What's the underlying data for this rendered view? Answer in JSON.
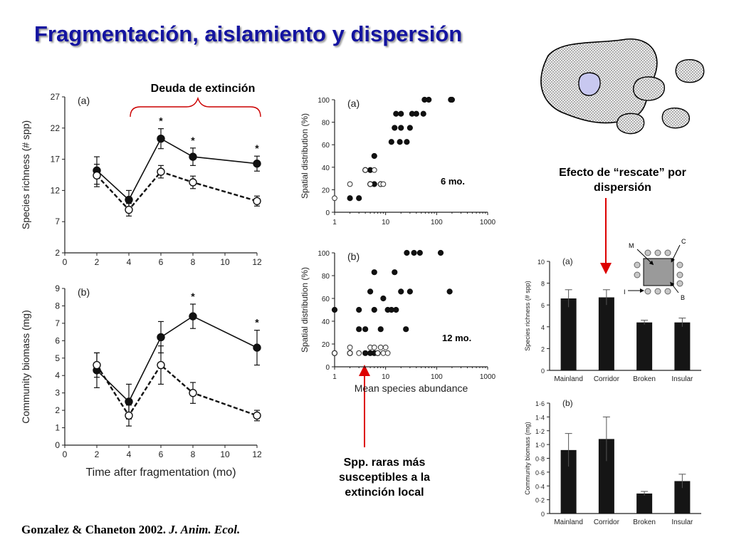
{
  "slide": {
    "title": "Fragmentación, aislamiento y dispersión",
    "annotations": {
      "debt": "Deuda de extinción",
      "rescue": [
        "Efecto de “rescate” por",
        "dispersión"
      ],
      "rare": [
        "Spp. raras más",
        "susceptibles a la",
        "extinción local"
      ],
      "label_6mo": "6 mo.",
      "label_12mo": "12 mo."
    },
    "citation": {
      "authors": "Gonzalez & Chaneton 2002. ",
      "journal": "J. Anim. Ecol."
    },
    "colors": {
      "title": "#1414a0",
      "bracket": "#cc0000",
      "arrow": "#dd0000",
      "patch_fill": "#e6e6e6",
      "center_patch": "#c8c8f0"
    }
  },
  "chart_data": [
    {
      "id": "richness-time",
      "type": "line",
      "panel": "(a)",
      "ylabel": "Species richness (# spp)",
      "x": [
        2,
        4,
        6,
        8,
        12
      ],
      "xlim": [
        0,
        12
      ],
      "xticks": [
        0,
        2,
        4,
        6,
        8,
        10,
        12
      ],
      "ylim": [
        2,
        27
      ],
      "yticks": [
        2,
        7,
        12,
        17,
        22,
        27
      ],
      "series": [
        {
          "style": "filled-solid",
          "values": [
            15.2,
            10.5,
            20.3,
            17.4,
            16.3
          ],
          "errors": [
            2.2,
            1.5,
            1.6,
            1.4,
            1.2
          ]
        },
        {
          "style": "open-dashed",
          "values": [
            14.4,
            8.9,
            15.0,
            13.3,
            10.3
          ],
          "errors": [
            1.8,
            1.0,
            1.0,
            1.0,
            0.8
          ]
        }
      ],
      "stars": [
        6,
        8,
        12
      ]
    },
    {
      "id": "biomass-time",
      "type": "line",
      "panel": "(b)",
      "ylabel": "Community biomass (mg)",
      "xlabel": "Time after fragmentation (mo)",
      "x": [
        2,
        4,
        6,
        8,
        12
      ],
      "xlim": [
        0,
        12
      ],
      "xticks": [
        0,
        2,
        4,
        6,
        8,
        10,
        12
      ],
      "ylim": [
        0,
        9
      ],
      "yticks": [
        0,
        1,
        2,
        3,
        4,
        5,
        6,
        7,
        8,
        9
      ],
      "series": [
        {
          "style": "filled-solid",
          "values": [
            4.3,
            2.5,
            6.2,
            7.4,
            5.6
          ],
          "errors": [
            1.0,
            1.0,
            0.9,
            0.7,
            1.0
          ]
        },
        {
          "style": "open-dashed",
          "values": [
            4.6,
            1.7,
            4.6,
            3.0,
            1.7
          ],
          "errors": [
            0.7,
            0.6,
            1.1,
            0.6,
            0.3
          ]
        }
      ],
      "stars": [
        8,
        12
      ]
    },
    {
      "id": "spatial-6mo",
      "type": "scatter",
      "panel": "(a)",
      "ylabel": "Spatial distribution (%)",
      "xscale": "log",
      "xlim": [
        1,
        1000
      ],
      "xticks": [
        1,
        10,
        100,
        1000
      ],
      "ylim": [
        0,
        100
      ],
      "yticks": [
        0,
        20,
        40,
        60,
        80,
        100
      ],
      "filled": [
        [
          2,
          12.5
        ],
        [
          3,
          12.5
        ],
        [
          4,
          37.5
        ],
        [
          5,
          25
        ],
        [
          5,
          37.5
        ],
        [
          6,
          25
        ],
        [
          6,
          50
        ],
        [
          8,
          25
        ],
        [
          13,
          62.5
        ],
        [
          15,
          75
        ],
        [
          16,
          87.5
        ],
        [
          19,
          62.5
        ],
        [
          20,
          75
        ],
        [
          20,
          87.5
        ],
        [
          26,
          62.5
        ],
        [
          30,
          75
        ],
        [
          33,
          87.5
        ],
        [
          40,
          87.5
        ],
        [
          55,
          87.5
        ],
        [
          58,
          100
        ],
        [
          70,
          100
        ],
        [
          190,
          100
        ],
        [
          200,
          100
        ]
      ],
      "open": [
        [
          1,
          12.5
        ],
        [
          2,
          25
        ],
        [
          4,
          37.5
        ],
        [
          5,
          25
        ],
        [
          6,
          37.5
        ],
        [
          8,
          25
        ],
        [
          9,
          25
        ]
      ]
    },
    {
      "id": "spatial-12mo",
      "type": "scatter",
      "panel": "(b)",
      "ylabel": "Spatial distribution (%)",
      "xlabel": "Mean species abundance",
      "xscale": "log",
      "xlim": [
        1,
        1000
      ],
      "xticks": [
        1,
        10,
        100,
        1000
      ],
      "ylim": [
        0,
        100
      ],
      "yticks": [
        0,
        20,
        40,
        60,
        80,
        100
      ],
      "filled": [
        [
          1,
          50
        ],
        [
          1,
          12
        ],
        [
          2,
          12
        ],
        [
          3,
          33
        ],
        [
          3,
          50
        ],
        [
          4,
          33
        ],
        [
          4,
          12
        ],
        [
          5,
          12
        ],
        [
          5,
          66
        ],
        [
          6,
          83
        ],
        [
          6,
          50
        ],
        [
          6,
          12
        ],
        [
          7,
          12
        ],
        [
          8,
          33
        ],
        [
          9,
          60
        ],
        [
          11,
          50
        ],
        [
          13,
          50
        ],
        [
          15,
          83
        ],
        [
          16,
          50
        ],
        [
          20,
          66
        ],
        [
          25,
          33
        ],
        [
          26,
          100
        ],
        [
          30,
          66
        ],
        [
          36,
          100
        ],
        [
          47,
          100
        ],
        [
          120,
          100
        ],
        [
          180,
          66
        ]
      ],
      "open": [
        [
          1,
          12
        ],
        [
          2,
          17
        ],
        [
          2,
          12
        ],
        [
          3,
          12
        ],
        [
          5,
          17
        ],
        [
          6,
          17
        ],
        [
          7,
          12
        ],
        [
          8,
          17
        ],
        [
          9,
          12
        ],
        [
          10,
          17
        ],
        [
          11,
          12
        ]
      ]
    },
    {
      "id": "richness-bars",
      "type": "bar",
      "panel": "(a)",
      "ylabel": "Species richness (# spp)",
      "categories": [
        "Mainland",
        "Corridor",
        "Broken",
        "Insular"
      ],
      "values": [
        6.6,
        6.7,
        4.4,
        4.4
      ],
      "errors": [
        0.8,
        0.7,
        0.2,
        0.4
      ],
      "ylim": [
        0,
        10
      ],
      "yticks": [
        0,
        2,
        4,
        6,
        8,
        10
      ]
    },
    {
      "id": "biomass-bars",
      "type": "bar",
      "panel": "(b)",
      "ylabel": "Community biomass (mg)",
      "categories": [
        "Mainland",
        "Corridor",
        "Broken",
        "Insular"
      ],
      "values": [
        0.92,
        1.08,
        0.29,
        0.47
      ],
      "errors": [
        0.24,
        0.32,
        0.03,
        0.1
      ],
      "ylim": [
        0,
        1.6
      ],
      "yticks": [
        0,
        0.2,
        0.4,
        0.6,
        0.8,
        1.0,
        1.2,
        1.4,
        1.6
      ],
      "yticklabels": [
        "0",
        "0·2",
        "0·4",
        "0·6",
        "0·8",
        "1·0",
        "1·2",
        "1·4",
        "1·6"
      ]
    }
  ],
  "inset_labels": {
    "m": "M",
    "c": "C",
    "i": "I",
    "b": "B"
  }
}
